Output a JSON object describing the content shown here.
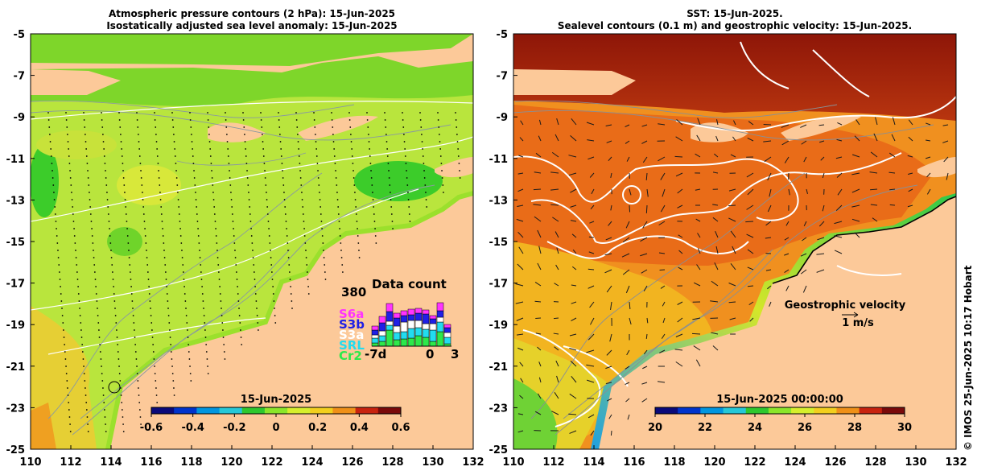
{
  "left_panel": {
    "title_line1": "Atmospheric pressure contours (2 hPa): 15-Jun-2025",
    "title_line2": "Isostatically adjusted sea level anomaly: 15-Jun-2025",
    "colorbar": {
      "date_label": "15-Jun-2025",
      "ticks": [
        "-0.6",
        "-0.4",
        "-0.2",
        "0",
        "0.2",
        "0.4",
        "0.6"
      ],
      "colors": [
        "#0a0a7a",
        "#0033cc",
        "#0096e0",
        "#25c8d8",
        "#2ec82e",
        "#8ae62a",
        "#d6ef2c",
        "#f2cf1e",
        "#ef9018",
        "#c8230f",
        "#7a0a0a"
      ]
    },
    "data_count": {
      "title": "Data count",
      "max_label": "380",
      "x_labels": [
        "-7d",
        "0",
        "3"
      ],
      "missions": [
        {
          "name": "S6a",
          "color": "#ff33ff"
        },
        {
          "name": "S3b",
          "color": "#1f1fe6"
        },
        {
          "name": "S3a",
          "color": "#ffffff"
        },
        {
          "name": "SRL",
          "color": "#22dcf0"
        },
        {
          "name": "Cr2",
          "color": "#2de84a"
        }
      ]
    }
  },
  "right_panel": {
    "title_line1": "SST: 15-Jun-2025.",
    "title_line2": "Sealevel contours (0.1 m) and geostrophic velocity: 15-Jun-2025.",
    "colorbar": {
      "date_label": "15-Jun-2025 00:00:00",
      "ticks": [
        "20",
        "22",
        "24",
        "26",
        "28",
        "30"
      ],
      "colors": [
        "#0a0a7a",
        "#0033cc",
        "#0096e0",
        "#25c8d8",
        "#2ec82e",
        "#8ae62a",
        "#d6ef2c",
        "#f2cf1e",
        "#ef9018",
        "#c8230f",
        "#7a0a0a"
      ]
    },
    "velocity_legend": {
      "label": "Geostrophic velocity",
      "scale": "1 m/s"
    }
  },
  "axes": {
    "x_ticks": [
      "110",
      "112",
      "114",
      "116",
      "118",
      "120",
      "122",
      "124",
      "126",
      "128",
      "130",
      "132"
    ],
    "y_ticks": [
      "-5",
      "-7",
      "-9",
      "-11",
      "-13",
      "-15",
      "-17",
      "-19",
      "-21",
      "-23",
      "-25"
    ]
  },
  "credit": "© IMOS 25-Jun-2025 10:17 Hobart",
  "colors": {
    "land": "#fcc999",
    "ocean_left": "#b3e43a",
    "ocean_right": "#f09a22",
    "north_right": "#b23210"
  }
}
